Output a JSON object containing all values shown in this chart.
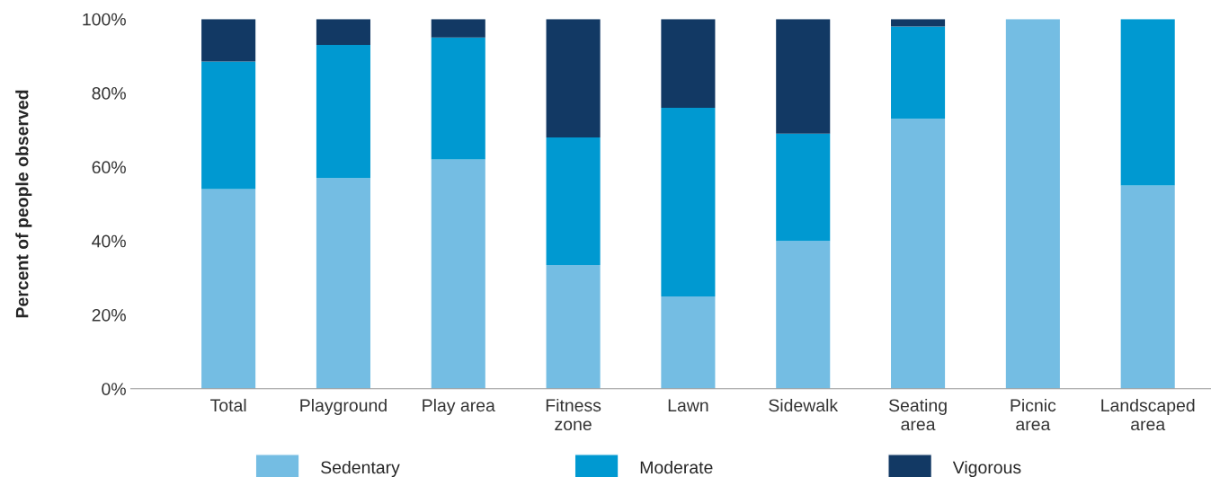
{
  "chart_data": {
    "type": "bar",
    "stacked": true,
    "ylabel": "Percent of people observed",
    "categories": [
      "Total",
      "Playground",
      "Play area",
      "Fitness\nzone",
      "Lawn",
      "Sidewalk",
      "Seating\narea",
      "Picnic\narea",
      "Landscaped\narea"
    ],
    "series": [
      {
        "name": "Sedentary",
        "color": "#74bde3",
        "values": [
          54,
          57,
          62,
          33.5,
          25,
          40,
          73,
          100,
          55
        ]
      },
      {
        "name": "Moderate",
        "color": "#0099d1",
        "values": [
          34.5,
          36,
          33,
          34.5,
          51,
          29,
          25,
          null,
          45
        ]
      },
      {
        "name": "Vigorous",
        "color": "#123964",
        "values": [
          11.5,
          7,
          5,
          32,
          24,
          31,
          2,
          null,
          null
        ]
      }
    ],
    "ylim": [
      0,
      100
    ],
    "yticks": [
      {
        "value": 0,
        "label": "0%"
      },
      {
        "value": 20,
        "label": "20%"
      },
      {
        "value": 40,
        "label": "40%"
      },
      {
        "value": 60,
        "label": "60%"
      },
      {
        "value": 80,
        "label": "80%"
      },
      {
        "value": 100,
        "label": "100%"
      }
    ],
    "grid": false,
    "legend": "bottom"
  }
}
